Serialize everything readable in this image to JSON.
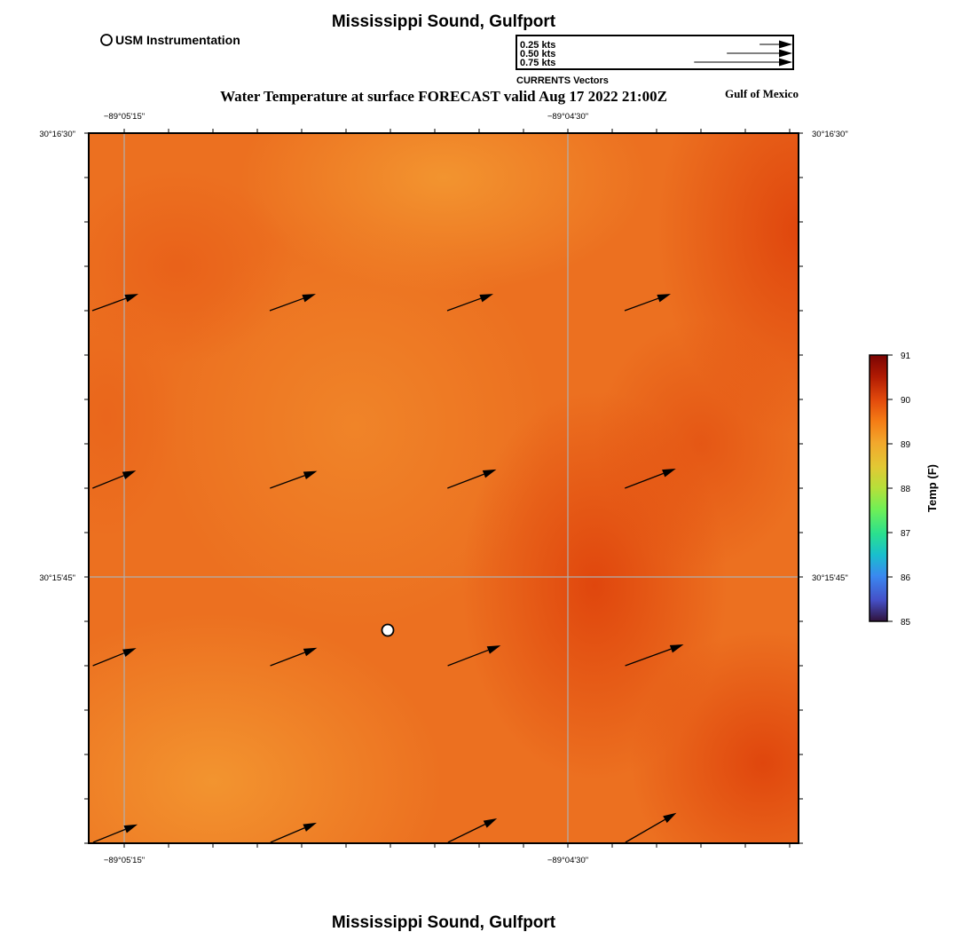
{
  "title_top": "Mississippi Sound, Gulfport",
  "title_bottom": "Mississippi Sound, Gulfport",
  "subtitle": "Water Temperature at surface FORECAST valid Aug 17 2022 21:00Z",
  "region_label": "Gulf of Mexico",
  "station_legend": {
    "label": "USM Instrumentation"
  },
  "vector_legend": {
    "title": "CURRENTS Vectors",
    "entries": [
      {
        "label": "0.25 kts",
        "speed": 0.25
      },
      {
        "label": "0.50 kts",
        "speed": 0.5
      },
      {
        "label": "0.75 kts",
        "speed": 0.75
      }
    ]
  },
  "axes": {
    "lon_labels": [
      "−89°05'15\"",
      "−89°04'30\""
    ],
    "lat_labels": [
      "30°16'30\"",
      "30°15'45\""
    ]
  },
  "colorbar": {
    "title": "Temp (F)",
    "min": 85,
    "max": 91,
    "ticks": [
      "91",
      "90",
      "89",
      "88",
      "87",
      "86",
      "85"
    ]
  },
  "colors": {
    "field_dark": "#e24a10",
    "field_mid": "#ec7020",
    "field_light": "#f2902a",
    "grid": "#b0b0b0"
  },
  "station": {
    "id": "usm-station"
  },
  "current_vectors": [
    {
      "row": 0,
      "col": 0,
      "speed": 0.45,
      "dir_deg": 20
    },
    {
      "row": 0,
      "col": 1,
      "speed": 0.45,
      "dir_deg": 20
    },
    {
      "row": 0,
      "col": 2,
      "speed": 0.45,
      "dir_deg": 20
    },
    {
      "row": 0,
      "col": 3,
      "speed": 0.45,
      "dir_deg": 20
    },
    {
      "row": 1,
      "col": 0,
      "speed": 0.43,
      "dir_deg": 22
    },
    {
      "row": 1,
      "col": 1,
      "speed": 0.46,
      "dir_deg": 20
    },
    {
      "row": 1,
      "col": 2,
      "speed": 0.48,
      "dir_deg": 21
    },
    {
      "row": 1,
      "col": 3,
      "speed": 0.5,
      "dir_deg": 21
    },
    {
      "row": 2,
      "col": 0,
      "speed": 0.43,
      "dir_deg": 22
    },
    {
      "row": 2,
      "col": 1,
      "speed": 0.46,
      "dir_deg": 21
    },
    {
      "row": 2,
      "col": 2,
      "speed": 0.52,
      "dir_deg": 21
    },
    {
      "row": 2,
      "col": 3,
      "speed": 0.57,
      "dir_deg": 20
    },
    {
      "row": 3,
      "col": 0,
      "speed": 0.44,
      "dir_deg": 22
    },
    {
      "row": 3,
      "col": 1,
      "speed": 0.46,
      "dir_deg": 23
    },
    {
      "row": 3,
      "col": 2,
      "speed": 0.5,
      "dir_deg": 26
    },
    {
      "row": 3,
      "col": 3,
      "speed": 0.54,
      "dir_deg": 30
    }
  ]
}
